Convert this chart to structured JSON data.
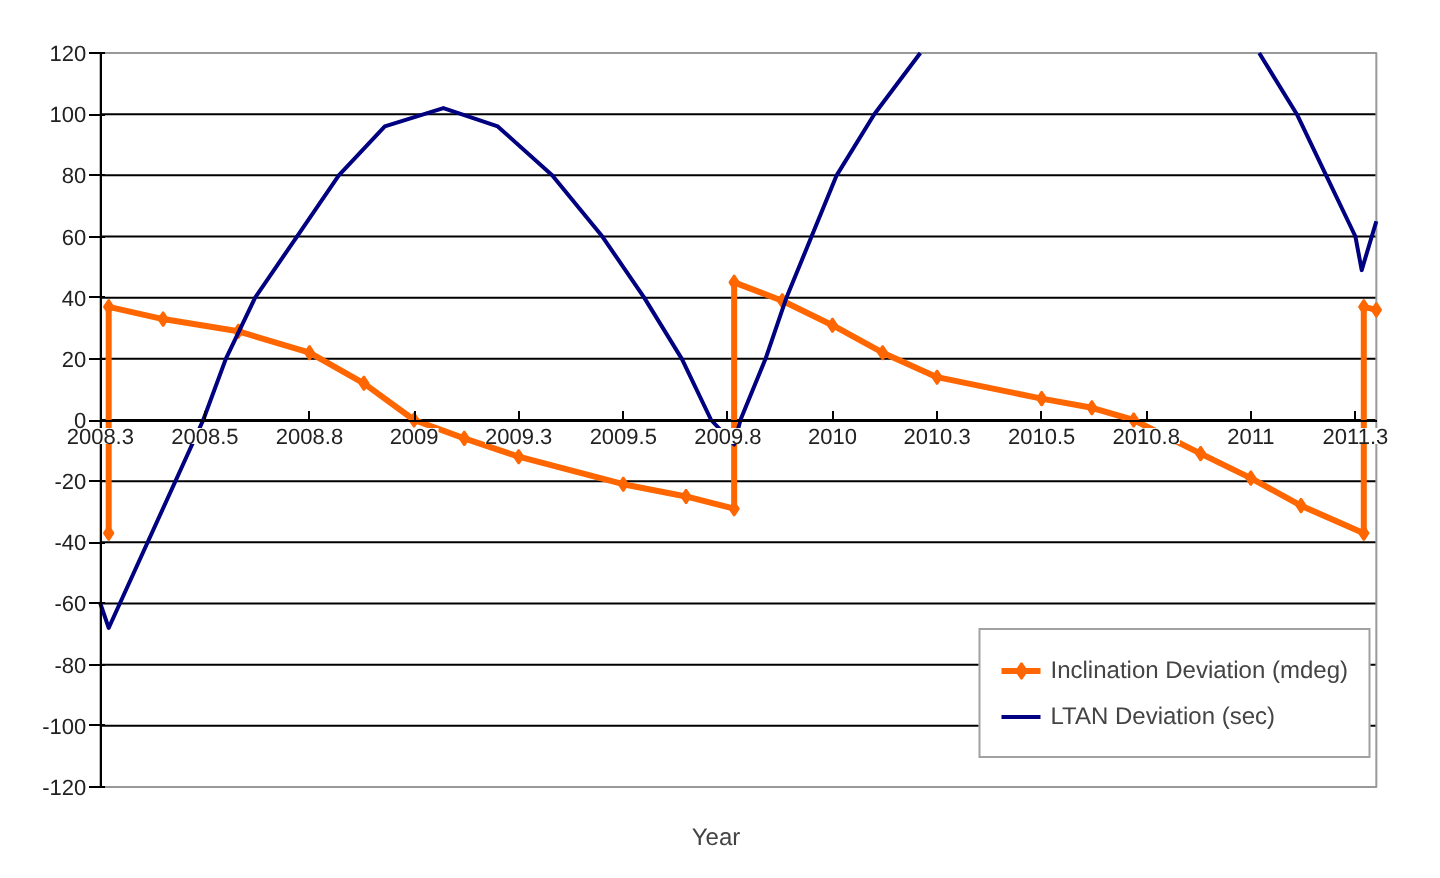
{
  "chart_data": {
    "type": "line",
    "xlabel": "Year",
    "xlim": [
      2008.25,
      2011.3
    ],
    "ylim": [
      -120,
      120
    ],
    "xticks": [
      {
        "value": 2008.25,
        "label": "2008.3"
      },
      2008.5,
      {
        "value": 2008.75,
        "label": "2008.8"
      },
      2009,
      {
        "value": 2009.25,
        "label": "2009.3"
      },
      2009.5,
      {
        "value": 2009.75,
        "label": "2009.8"
      },
      2010,
      {
        "value": 2010.25,
        "label": "2010.3"
      },
      2010.5,
      {
        "value": 2010.75,
        "label": "2010.8"
      },
      2011,
      {
        "value": 2011.25,
        "label": "2011.3"
      }
    ],
    "yticks": [
      -120,
      -100,
      -80,
      -60,
      -40,
      -20,
      0,
      20,
      40,
      60,
      80,
      100,
      120
    ],
    "grid": "y",
    "legend": "bottom right",
    "series": [
      {
        "name": "Inclination Deviation (mdeg)",
        "color": "#ff6600",
        "marker": "diamond",
        "x": [
          2008.27,
          2008.27,
          2008.4,
          2008.58,
          2008.75,
          2008.88,
          2009.0,
          2009.12,
          2009.25,
          2009.5,
          2009.65,
          2009.765,
          2009.765,
          2009.88,
          2010.0,
          2010.12,
          2010.25,
          2010.5,
          2010.62,
          2010.72,
          2010.88,
          2011.0,
          2011.12,
          2011.27,
          2011.27,
          2011.3
        ],
        "values": [
          -37,
          37,
          33,
          29,
          22,
          12,
          0,
          -6,
          -12,
          -21,
          -25,
          -29,
          45,
          39,
          31,
          22,
          14,
          7,
          4,
          0,
          -11,
          -19,
          -28,
          -37,
          37,
          36
        ]
      },
      {
        "name": "LTAN Deviation (sec)",
        "color": "#000080",
        "marker": "none",
        "x": [
          2008.25,
          2008.27,
          2008.496,
          2008.55,
          2008.62,
          2008.72,
          2008.82,
          2008.93,
          2009.07,
          2009.2,
          2009.33,
          2009.45,
          2009.55,
          2009.64,
          2009.71,
          2009.765,
          2009.78,
          2009.84,
          2009.89,
          2009.95,
          2010.01,
          2010.1,
          2010.21,
          2010.6,
          2011.02,
          2011.11,
          2011.18,
          2011.25,
          2011.265,
          2011.3
        ],
        "values": [
          -60,
          -68,
          0,
          20,
          40,
          60,
          80,
          96,
          102,
          96,
          80,
          60,
          40,
          20,
          0,
          -8,
          0,
          20,
          40,
          60,
          80,
          100,
          120,
          null,
          120,
          100,
          80,
          60,
          49,
          65
        ]
      }
    ]
  }
}
